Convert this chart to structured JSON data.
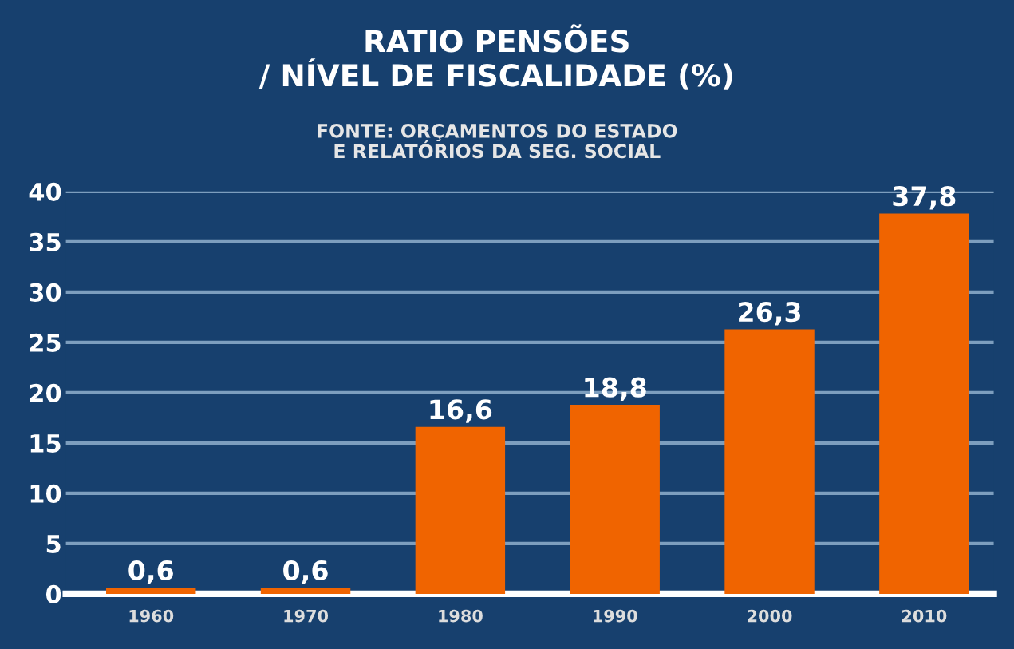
{
  "chart_data": {
    "type": "bar",
    "title": "RATIO PENSÕES\n/ NÍVEL DE FISCALIDADE (%)",
    "subtitle": "FONTE: ORÇAMENTOS DO ESTADO\nE RELATÓRIOS DA SEG. SOCIAL",
    "categories": [
      "1960",
      "1970",
      "1980",
      "1990",
      "2000",
      "2010"
    ],
    "values": [
      0.6,
      0.6,
      16.6,
      18.8,
      26.3,
      37.8
    ],
    "value_labels": [
      "0,6",
      "0,6",
      "16,6",
      "18,8",
      "26,3",
      "37,8"
    ],
    "color": "#f06400",
    "ylim": [
      0,
      40
    ],
    "yticks": [
      0,
      5,
      10,
      15,
      20,
      25,
      30,
      35,
      40
    ],
    "grid": "y",
    "legend": false
  }
}
